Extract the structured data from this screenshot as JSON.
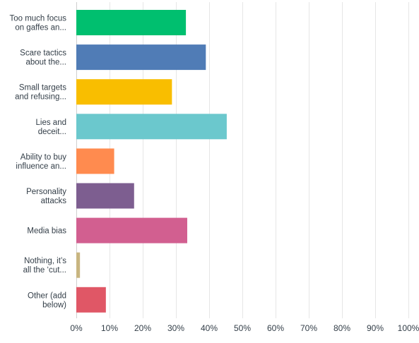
{
  "chart_data": {
    "type": "bar",
    "orientation": "horizontal",
    "categories": [
      [
        "Too much focus",
        "on gaffes an..."
      ],
      [
        "Scare tactics",
        "about the..."
      ],
      [
        "Small targets",
        "and refusing..."
      ],
      [
        "Lies and",
        "deceit..."
      ],
      [
        "Ability to buy",
        "influence an..."
      ],
      [
        "Personality",
        "attacks"
      ],
      [
        "Media bias"
      ],
      [
        "Nothing, it’s",
        "all the ‘cut..."
      ],
      [
        "Other (add",
        "below)"
      ]
    ],
    "values": [
      33.0,
      39.0,
      28.8,
      45.3,
      11.4,
      17.4,
      33.4,
      1.1,
      8.9
    ],
    "colors": [
      "#00bf6f",
      "#507cb6",
      "#f9be00",
      "#6bc8cd",
      "#ff8b4f",
      "#7d5e90",
      "#d25f90",
      "#c8b580",
      "#e05766"
    ],
    "xlim": [
      0,
      100
    ],
    "ticks": [
      0,
      10,
      20,
      30,
      40,
      50,
      60,
      70,
      80,
      90,
      100
    ],
    "tick_suffix": "%",
    "grid": true,
    "grid_color": "#e6e6e6",
    "label_color": "#333e48"
  }
}
